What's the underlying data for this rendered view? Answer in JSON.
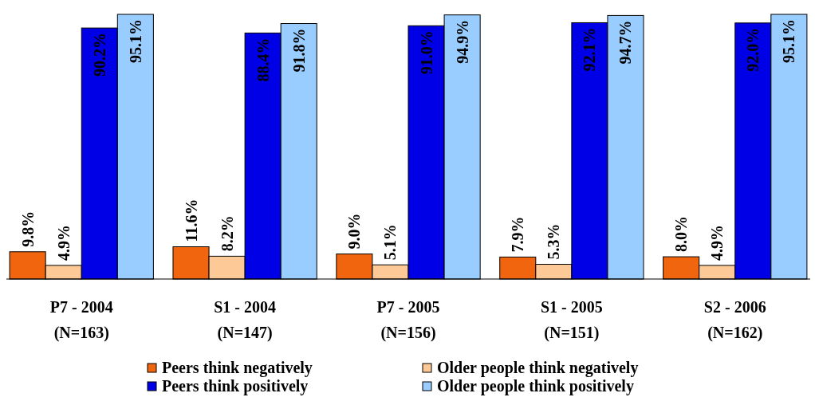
{
  "chart_data": {
    "type": "bar",
    "categories": [
      "P7 - 2004\n(N=163)",
      "S1 - 2004\n(N=147)",
      "P7 - 2005\n(N=156)",
      "S1 - 2005\n(N=151)",
      "S2 - 2006\n(N=162)"
    ],
    "series": [
      {
        "name": "Peers think negatively",
        "color": "#f0650e",
        "values": [
          9.8,
          11.6,
          9.0,
          7.9,
          8.0
        ],
        "value_labels": [
          "9.8%",
          "11.6%",
          "9.0%",
          "7.9%",
          "8.0%"
        ]
      },
      {
        "name": "Older people think negatively",
        "color": "#fdc996",
        "values": [
          4.9,
          8.2,
          5.1,
          5.3,
          4.9
        ],
        "value_labels": [
          "4.9%",
          "8.2%",
          "5.1%",
          "5.3%",
          "4.9%"
        ]
      },
      {
        "name": "Peers think positively",
        "color": "#0000e6",
        "values": [
          90.2,
          88.4,
          91.0,
          92.1,
          92.0
        ],
        "value_labels": [
          "90.2%",
          "88.4%",
          "91.0%",
          "92.1%",
          "92.0%"
        ]
      },
      {
        "name": "Older people think positively",
        "color": "#99ccff",
        "values": [
          95.1,
          91.8,
          94.9,
          94.7,
          95.1
        ],
        "value_labels": [
          "95.1%",
          "91.8%",
          "94.9%",
          "94.7%",
          "95.1%"
        ]
      }
    ],
    "legend": "bottom"
  }
}
